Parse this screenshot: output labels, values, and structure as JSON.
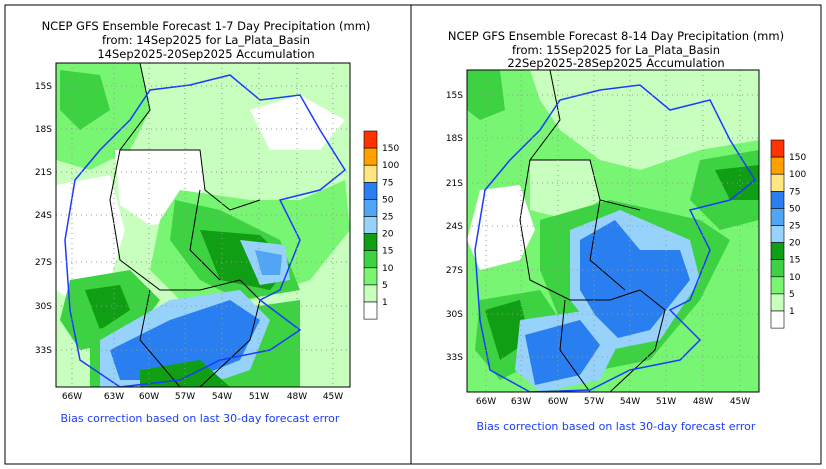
{
  "panels": [
    {
      "title_line1": "NCEP GFS Ensemble Forecast 1-7 Day Precipitation (mm)",
      "title_line2": "from: 14Sep2025   for La_Plata_Basin",
      "title_line3": "14Sep2025-20Sep2025 Accumulation",
      "lon_labels": [
        "66W",
        "63W",
        "60W",
        "57W",
        "54W",
        "51W",
        "48W",
        "45W"
      ],
      "lat_labels": [
        "15S",
        "18S",
        "21S",
        "24S",
        "27S",
        "30S",
        "33S"
      ],
      "footer": "Bias correction based on last 30-day forecast error"
    },
    {
      "title_line1": "NCEP GFS Ensemble Forecast 8-14 Day Precipitation (mm)",
      "title_line2": "from: 15Sep2025   for La_Plata_Basin",
      "title_line3": "22Sep2025-28Sep2025 Accumulation",
      "lon_labels": [
        "66W",
        "63W",
        "60W",
        "57W",
        "54W",
        "51W",
        "48W",
        "45W"
      ],
      "lat_labels": [
        "15S",
        "18S",
        "21S",
        "24S",
        "27S",
        "30S",
        "33S"
      ],
      "footer": "Bias correction based on last 30-day forecast error"
    }
  ],
  "legend": {
    "levels": [
      "150",
      "100",
      "75",
      "50",
      "25",
      "20",
      "15",
      "10",
      "5",
      "1"
    ],
    "colors": [
      "#ff3300",
      "#ffa000",
      "#ffe680",
      "#2a7ff0",
      "#50a5f5",
      "#96d2fa",
      "#0f9e14",
      "#3cd241",
      "#78f573",
      "#c8ffbe",
      "#ffffff"
    ]
  },
  "colors": {
    "basin_outline": "#1a3cff",
    "footer_text": "#1a3cff"
  }
}
